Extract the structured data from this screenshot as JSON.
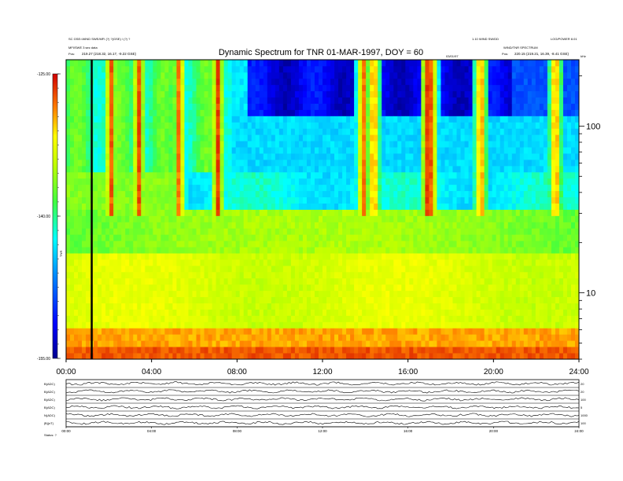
{
  "chart_data": [
    {
      "type": "heatmap",
      "title": "Dynamic Spectrum for TNR 01-MAR-1997, DOY = 60",
      "header": {
        "left_line1": "SC GSE=WIND SWE/MFI (?) ?(GSE) / (?) ?",
        "left_line2": "MFI/SWE 3 sec data",
        "left_line3": "Pos:",
        "left_pos": "219.27 (218.32, 16.17, -9.22 GSE)",
        "right_line1": "1.10 WIND SW/DD",
        "right_line2": "LOG/POWER 8.01",
        "right_line3": "WIND/TNR SPECTRUM",
        "right_line4": "Pos:",
        "right_pos": "220.15 (219.21, 16.39, -8.41 GSE)",
        "date_marker": "03/01/97"
      },
      "xlabel": "",
      "xlim": [
        0,
        24
      ],
      "x_ticks": [
        "00:00",
        "04:00",
        "08:00",
        "12:00",
        "16:00",
        "20:00",
        "24:00"
      ],
      "y_axis_right": {
        "scale": "log",
        "range_khz": [
          4,
          250
        ],
        "ticks": [
          "100",
          "10"
        ],
        "unit": "kHz"
      },
      "colorbar": {
        "label": "TNR",
        "ticks": [
          "-125.00",
          "-140.00",
          "-155.00"
        ],
        "range": [
          -155,
          -125
        ]
      },
      "features": {
        "data_gap_line_hour": 1.2,
        "bursts_hours": [
          2.1,
          3.4,
          5.3,
          7.1,
          13.9,
          14.4,
          16.9,
          17.1,
          19.4,
          22.9
        ],
        "band_boundary_khz": [
          55,
          33,
          18
        ],
        "low_freq_noise_khz": 5
      }
    },
    {
      "type": "line",
      "title": "",
      "xlim": [
        0,
        24
      ],
      "x_ticks": [
        "00:00",
        "04:00",
        "08:00",
        "12:00",
        "16:00",
        "20:00",
        "24:00"
      ],
      "series": [
        {
          "name": "B(ADC)",
          "right_label": "20"
        },
        {
          "name": "B(ADC)",
          "right_label": "20"
        },
        {
          "name": "B(ADC)",
          "right_label": "100"
        },
        {
          "name": "B(ADC)",
          "right_label": "5"
        },
        {
          "name": "N(ADC)",
          "right_label": "1000"
        },
        {
          "name": "|B|(nT)",
          "right_label": "100"
        }
      ],
      "footer": "Status: ?"
    }
  ],
  "colors": {
    "background": "#ffffff",
    "axis": "#000000"
  }
}
